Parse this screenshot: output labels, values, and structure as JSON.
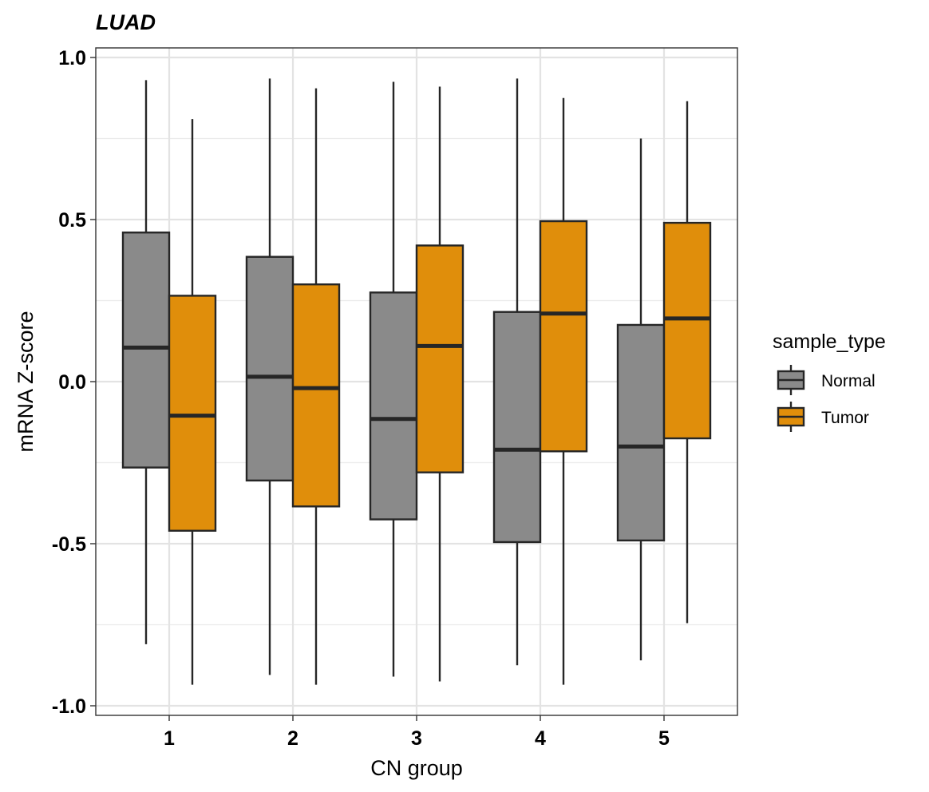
{
  "chart_data": {
    "type": "boxplot",
    "title": "LUAD",
    "xlabel": "CN group",
    "ylabel": "mRNA Z-score",
    "ylim": [
      -1.02,
      1.03
    ],
    "yticks": [
      "1.0",
      "0.5",
      "0.0",
      "-0.5",
      "-1.0"
    ],
    "ytick_values": [
      1.0,
      0.5,
      0.0,
      -0.5,
      -1.0
    ],
    "categories": [
      "1",
      "2",
      "3",
      "4",
      "5"
    ],
    "legend_title": "sample_type",
    "legend_position": "right",
    "grid": true,
    "series": [
      {
        "name": "Normal",
        "color": "#8a8a8a",
        "boxes": [
          {
            "whisker_low": -0.81,
            "q1": -0.265,
            "median": 0.105,
            "q3": 0.46,
            "whisker_high": 0.93
          },
          {
            "whisker_low": -0.905,
            "q1": -0.305,
            "median": 0.015,
            "q3": 0.385,
            "whisker_high": 0.935
          },
          {
            "whisker_low": -0.91,
            "q1": -0.425,
            "median": -0.115,
            "q3": 0.275,
            "whisker_high": 0.925
          },
          {
            "whisker_low": -0.875,
            "q1": -0.495,
            "median": -0.21,
            "q3": 0.215,
            "whisker_high": 0.935
          },
          {
            "whisker_low": -0.86,
            "q1": -0.49,
            "median": -0.2,
            "q3": 0.175,
            "whisker_high": 0.75
          }
        ]
      },
      {
        "name": "Tumor",
        "color": "#e08e0b",
        "boxes": [
          {
            "whisker_low": -0.935,
            "q1": -0.46,
            "median": -0.105,
            "q3": 0.265,
            "whisker_high": 0.81
          },
          {
            "whisker_low": -0.935,
            "q1": -0.385,
            "median": -0.02,
            "q3": 0.3,
            "whisker_high": 0.905
          },
          {
            "whisker_low": -0.925,
            "q1": -0.28,
            "median": 0.11,
            "q3": 0.42,
            "whisker_high": 0.91
          },
          {
            "whisker_low": -0.935,
            "q1": -0.215,
            "median": 0.21,
            "q3": 0.495,
            "whisker_high": 0.875
          },
          {
            "whisker_low": -0.745,
            "q1": -0.175,
            "median": 0.195,
            "q3": 0.49,
            "whisker_high": 0.865
          }
        ]
      }
    ]
  }
}
